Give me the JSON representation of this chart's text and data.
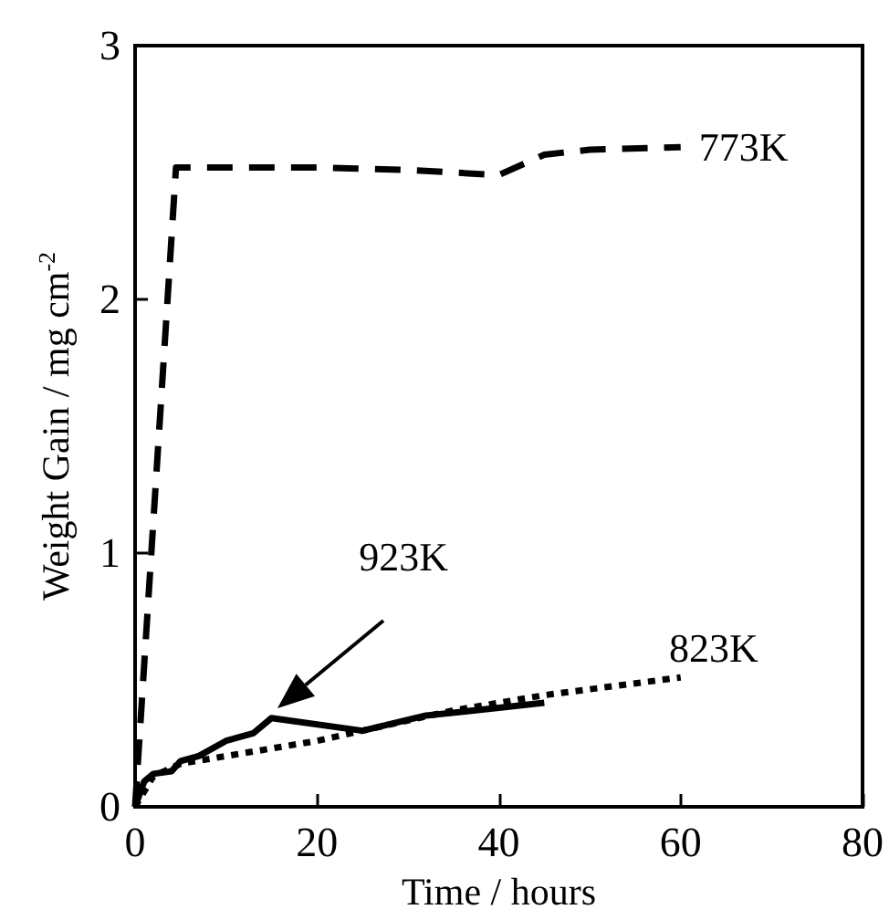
{
  "chart_data": {
    "type": "line",
    "xlabel": "Time / hours",
    "ylabel": "Weight Gain / mg cm$^{-2}$",
    "xlim": [
      0,
      80
    ],
    "xticks": [
      0,
      20,
      40,
      60,
      80
    ],
    "ylim": [
      0,
      3
    ],
    "yticks": [
      0,
      1,
      2,
      3
    ],
    "grid": false,
    "legend": false,
    "marker": "none",
    "annotations": [
      "923K"
    ],
    "series": [
      {
        "name": "773K",
        "color": "#000000",
        "line_style": "dashed",
        "x": [
          0,
          4.5,
          10,
          20,
          30,
          40,
          45,
          50,
          60
        ],
        "values": [
          0,
          2.52,
          2.52,
          2.52,
          2.51,
          2.49,
          2.57,
          2.59,
          2.6
        ]
      },
      {
        "name": "823K",
        "color": "#000000",
        "line_style": "dotted",
        "x": [
          0,
          2,
          5,
          10,
          20,
          25,
          35,
          45,
          60
        ],
        "values": [
          0,
          0.12,
          0.17,
          0.2,
          0.26,
          0.3,
          0.38,
          0.44,
          0.51
        ]
      },
      {
        "color": "#000000",
        "line_style": "solid",
        "x": [
          0,
          1,
          2,
          4,
          5,
          7,
          10,
          13,
          15,
          25,
          32,
          40,
          45
        ],
        "values": [
          0,
          0.1,
          0.13,
          0.14,
          0.18,
          0.2,
          0.26,
          0.29,
          0.35,
          0.3,
          0.36,
          0.39,
          0.41
        ]
      }
    ]
  }
}
